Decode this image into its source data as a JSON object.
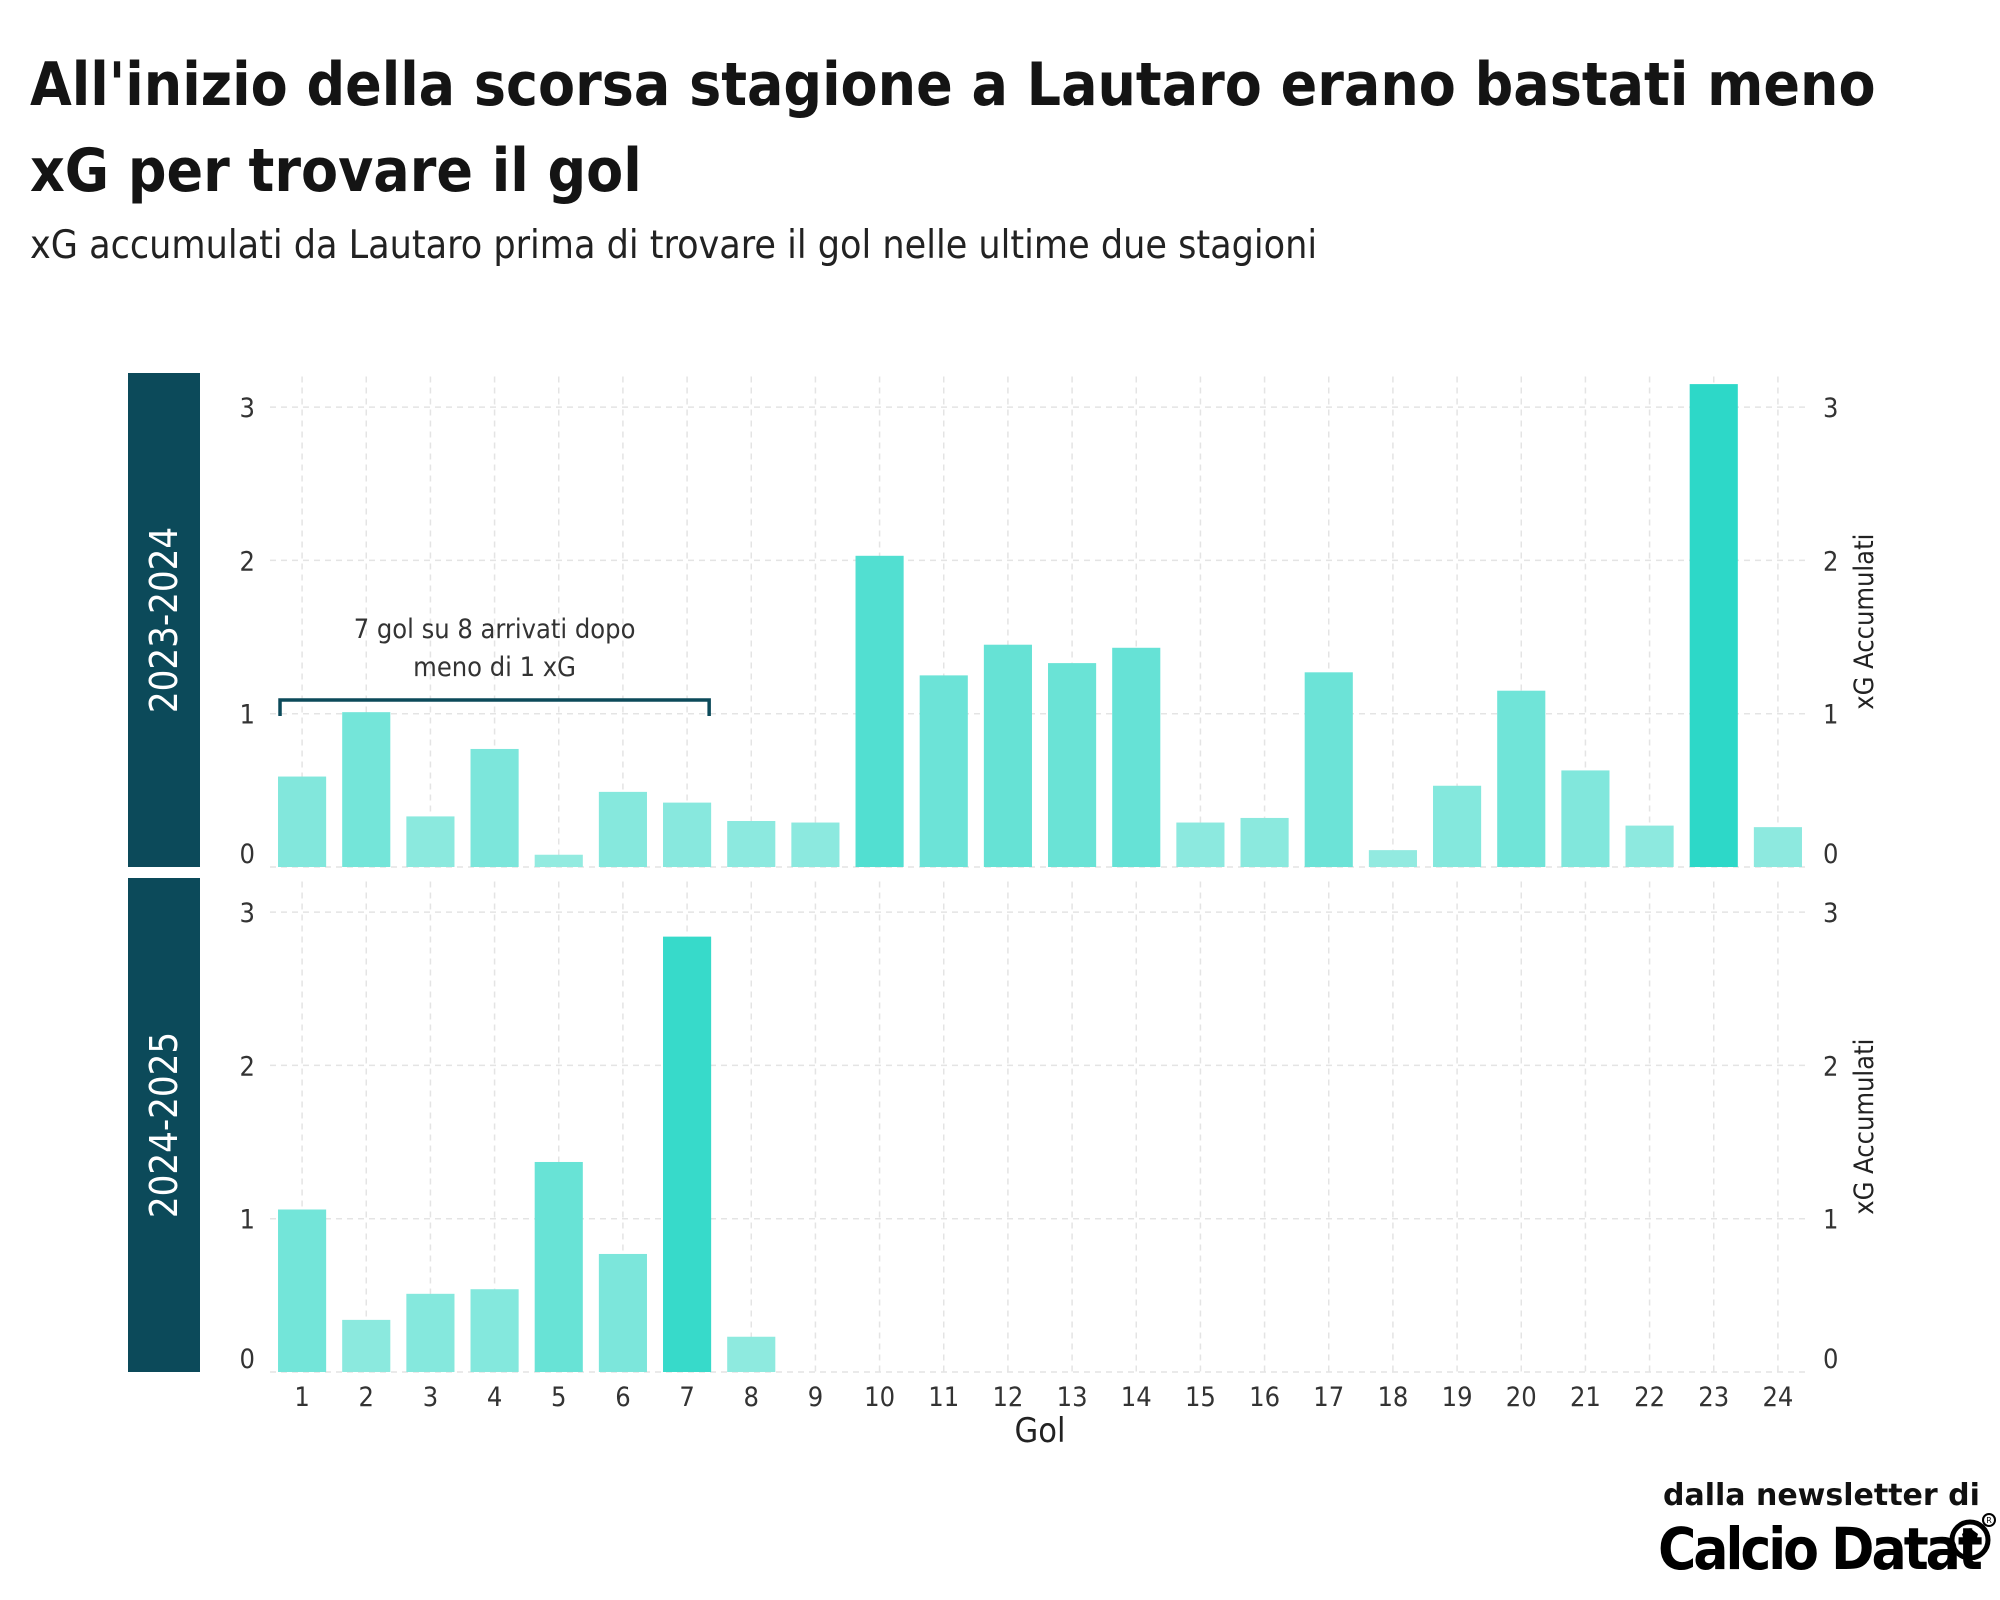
{
  "title": "All'inizio della scorsa stagione a Lautaro erano bastati meno xG per trovare il gol",
  "subtitle": "xG accumulati da Lautaro prima di trovare il gol nelle ultime due stagioni",
  "credit": "dalla newsletter di",
  "logo_text": "Calcio Datat",
  "logo_icon": "soccer-ball-icon",
  "chart_data": {
    "type": "bar",
    "xlabel": "Gol",
    "ylabel": "xG Accumulati",
    "x": [
      "1",
      "2",
      "3",
      "4",
      "5",
      "6",
      "7",
      "8",
      "9",
      "10",
      "11",
      "12",
      "13",
      "14",
      "15",
      "16",
      "17",
      "18",
      "19",
      "20",
      "21",
      "22",
      "23",
      "24"
    ],
    "yticks": [
      "0",
      "1",
      "2",
      "3"
    ],
    "ylim": [
      0,
      3.2
    ],
    "grid": true,
    "color_scale": [
      "#96ebe1",
      "#2dd8c8"
    ],
    "panels": [
      {
        "name": "2023-2024",
        "values": [
          0.59,
          1.01,
          0.33,
          0.77,
          0.08,
          0.49,
          0.42,
          0.3,
          0.29,
          2.03,
          1.25,
          1.45,
          1.33,
          1.43,
          0.29,
          0.32,
          1.27,
          0.11,
          0.53,
          1.15,
          0.63,
          0.27,
          3.15,
          0.26
        ],
        "annotation": {
          "lines": [
            "7 gol su 8 arrivati dopo",
            "meno di 1 xG"
          ],
          "from_x": "1",
          "to_x": "7",
          "level": 1.07
        }
      },
      {
        "name": "2024-2025",
        "values": [
          1.06,
          0.34,
          0.51,
          0.54,
          1.37,
          0.77,
          2.84,
          0.23
        ]
      }
    ]
  }
}
